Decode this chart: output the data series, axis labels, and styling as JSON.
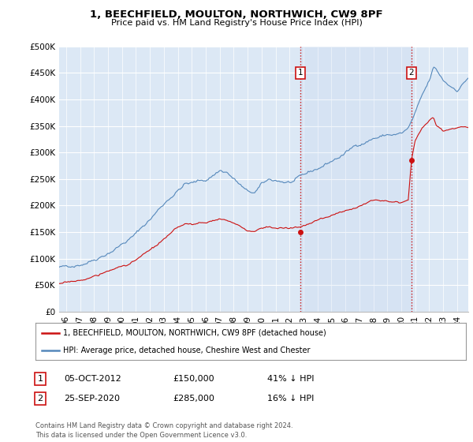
{
  "title": "1, BEECHFIELD, MOULTON, NORTHWICH, CW9 8PF",
  "subtitle": "Price paid vs. HM Land Registry's House Price Index (HPI)",
  "background_color": "#ffffff",
  "plot_bg_color": "#dce8f5",
  "grid_color": "#ffffff",
  "hpi_color": "#5588bb",
  "price_color": "#cc1111",
  "vline_color": "#cc1111",
  "purchase1_date_x": 2012.77,
  "purchase1_price": 150000,
  "purchase2_date_x": 2020.73,
  "purchase2_price": 285000,
  "ylim": [
    0,
    500000
  ],
  "xlim": [
    1995.5,
    2024.8
  ],
  "yticks": [
    0,
    50000,
    100000,
    150000,
    200000,
    250000,
    300000,
    350000,
    400000,
    450000,
    500000
  ],
  "ytick_labels": [
    "£0",
    "£50K",
    "£100K",
    "£150K",
    "£200K",
    "£250K",
    "£300K",
    "£350K",
    "£400K",
    "£450K",
    "£500K"
  ],
  "xtick_years": [
    1996,
    1997,
    1998,
    1999,
    2000,
    2001,
    2002,
    2003,
    2004,
    2005,
    2006,
    2007,
    2008,
    2009,
    2010,
    2011,
    2012,
    2013,
    2014,
    2015,
    2016,
    2017,
    2018,
    2019,
    2020,
    2021,
    2022,
    2023,
    2024
  ],
  "legend_price_label": "1, BEECHFIELD, MOULTON, NORTHWICH, CW9 8PF (detached house)",
  "legend_hpi_label": "HPI: Average price, detached house, Cheshire West and Chester",
  "table_row1": [
    "1",
    "05-OCT-2012",
    "£150,000",
    "41% ↓ HPI"
  ],
  "table_row2": [
    "2",
    "25-SEP-2020",
    "£285,000",
    "16% ↓ HPI"
  ],
  "footnote": "Contains HM Land Registry data © Crown copyright and database right 2024.\nThis data is licensed under the Open Government Licence v3.0."
}
